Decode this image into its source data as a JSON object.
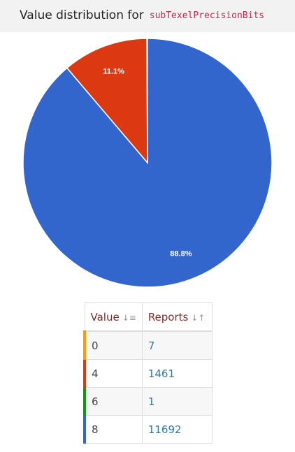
{
  "header": {
    "title": "Value distribution for",
    "code": "subTexelPrecisionBits"
  },
  "chart_data": {
    "type": "pie",
    "values": [
      88.8,
      11.1
    ],
    "value_labels": [
      "88.8%",
      "11.1%"
    ],
    "colors": [
      "#3366cc",
      "#dc3912"
    ]
  },
  "table": {
    "columns": [
      "Value",
      "Reports"
    ],
    "rows": [
      {
        "value": 0,
        "reports": 7,
        "color": "#ff9900"
      },
      {
        "value": 4,
        "reports": 1461,
        "color": "#dc3912"
      },
      {
        "value": 6,
        "reports": 1,
        "color": "#109618"
      },
      {
        "value": 8,
        "reports": 11692,
        "color": "#3366cc"
      }
    ]
  }
}
